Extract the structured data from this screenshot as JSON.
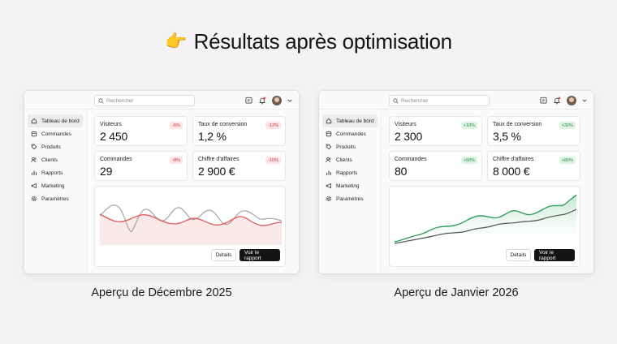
{
  "headline": {
    "emoji": "👉",
    "title": "Résultats après optimisation"
  },
  "dashboards": [
    {
      "search_placeholder": "Rechercher",
      "nav": [
        "Tableau de bord",
        "Commandes",
        "Produits",
        "Clients",
        "Rapports",
        "Marketing",
        "Paramètres"
      ],
      "cards": [
        {
          "label": "Visiteurs",
          "value": "2 450",
          "badge": "-6%",
          "trend": "neg"
        },
        {
          "label": "Taux de conversion",
          "value": "1,2 %",
          "badge": "-12%",
          "trend": "neg"
        },
        {
          "label": "Commandes",
          "value": "29",
          "badge": "-8%",
          "trend": "neg"
        },
        {
          "label": "Chiffre d'affaires",
          "value": "2 900 €",
          "badge": "-10%",
          "trend": "neg"
        }
      ],
      "buttons": {
        "details": "Détails",
        "report": "Voir le rapport"
      },
      "caption": "Aperçu de Décembre 2025",
      "chart_colors": {
        "primary": "#e05a5a",
        "secondary": "#9a9a9a",
        "fill": "#f6c9c9"
      }
    },
    {
      "search_placeholder": "Rechercher",
      "nav": [
        "Tableau de bord",
        "Commandes",
        "Produits",
        "Clients",
        "Rapports",
        "Marketing",
        "Paramètres"
      ],
      "cards": [
        {
          "label": "Visiteurs",
          "value": "2 300",
          "badge": "+10%",
          "trend": "pos"
        },
        {
          "label": "Taux de conversion",
          "value": "3,5 %",
          "badge": "+30%",
          "trend": "pos"
        },
        {
          "label": "Commandes",
          "value": "80",
          "badge": "+60%",
          "trend": "pos"
        },
        {
          "label": "Chiffre d'affaires",
          "value": "8 000 €",
          "badge": "+80%",
          "trend": "pos"
        }
      ],
      "buttons": {
        "details": "Détails",
        "report": "Voir le rapport"
      },
      "caption": "Aperçu de Janvier 2026",
      "chart_colors": {
        "primary": "#2f9e5b",
        "secondary": "#5a5a5a",
        "fill": "#cdebd8"
      }
    }
  ]
}
